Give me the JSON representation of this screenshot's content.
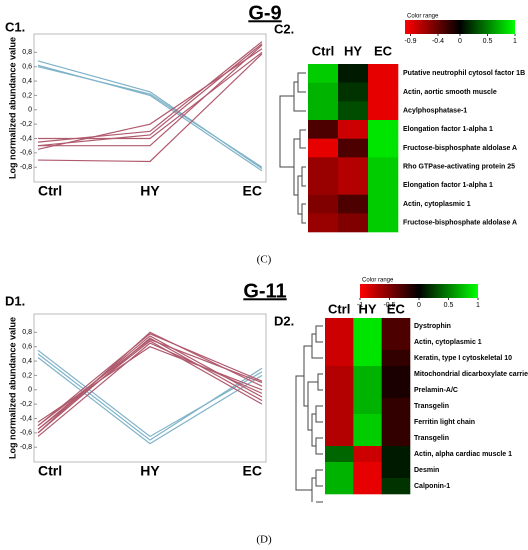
{
  "figures": [
    {
      "title": "G-9",
      "caption": "(C)"
    },
    {
      "title": "G-11",
      "caption": "(D)"
    }
  ],
  "chart_data": [
    {
      "type": "line",
      "panel_label": "C1.",
      "y_label": "Log normalized abundance value",
      "categories": [
        "Ctrl",
        "HY",
        "EC"
      ],
      "ylim": [
        -0.95,
        1.0
      ],
      "yticks": [
        {
          "value": 0.8,
          "label": "0,8"
        },
        {
          "value": 0.6,
          "label": "0,6"
        },
        {
          "value": 0.4,
          "label": "0,4"
        },
        {
          "value": 0.2,
          "label": "0,2"
        },
        0,
        {
          "value": -0.2,
          "label": "-0,2"
        },
        {
          "value": -0.4,
          "label": "-0,4"
        },
        {
          "value": -0.6,
          "label": "-0,6"
        },
        {
          "value": -0.8,
          "label": "-0,8"
        }
      ],
      "series": [
        {
          "color": "#7fb3c8",
          "values": [
            0.68,
            0.25,
            -0.82
          ]
        },
        {
          "color": "#7fb3c8",
          "values": [
            0.62,
            0.2,
            -0.85
          ]
        },
        {
          "color": "#7fb3c8",
          "values": [
            0.6,
            0.22,
            -0.8
          ]
        },
        {
          "color": "#b05a6e",
          "values": [
            -0.45,
            -0.3,
            0.95
          ]
        },
        {
          "color": "#b05a6e",
          "values": [
            -0.5,
            -0.5,
            0.9
          ]
        },
        {
          "color": "#b05a6e",
          "values": [
            -0.55,
            -0.2,
            0.85
          ]
        },
        {
          "color": "#b05a6e",
          "values": [
            -0.4,
            -0.4,
            0.8
          ]
        },
        {
          "color": "#b05a6e",
          "values": [
            -0.7,
            -0.72,
            0.78
          ]
        },
        {
          "color": "#b05a6e",
          "values": [
            -0.5,
            -0.35,
            0.92
          ]
        }
      ]
    },
    {
      "type": "heatmap",
      "panel_label": "C2.",
      "columns": [
        "Ctrl",
        "HY",
        "EC"
      ],
      "rows": [
        "Putative neutrophil cytosol factor 1B",
        "Actin, aortic smooth muscle",
        "Acylphosphatase-1",
        "Elongation factor 1-alpha 1",
        "Fructose-bisphosphate aldolase A",
        "Rho GTPase-activating protein 25",
        "Elongation factor 1-alpha 1",
        "Actin, cytoplasmic 1",
        "Fructose-bisphosphate aldolase A"
      ],
      "values": [
        [
          0.8,
          0.1,
          -0.9
        ],
        [
          0.7,
          0.2,
          -0.9
        ],
        [
          0.7,
          0.3,
          -0.9
        ],
        [
          -0.3,
          -0.8,
          0.9
        ],
        [
          -0.9,
          -0.3,
          0.9
        ],
        [
          -0.6,
          -0.7,
          0.8
        ],
        [
          -0.6,
          -0.7,
          0.8
        ],
        [
          -0.5,
          -0.3,
          0.8
        ],
        [
          -0.6,
          -0.5,
          0.8
        ]
      ],
      "colorbar": {
        "title": "Color range",
        "clim": [
          -1,
          1
        ],
        "colors": [
          "#ff0000",
          "#000000",
          "#00ff00"
        ],
        "ticks": [
          -0.9,
          -0.4,
          0,
          0.5,
          1
        ]
      }
    },
    {
      "type": "line",
      "panel_label": "D1.",
      "y_label": "Log normalized abundance value",
      "categories": [
        "Ctrl",
        "HY",
        "EC"
      ],
      "ylim": [
        -0.95,
        1.0
      ],
      "yticks": [
        {
          "value": 0.8,
          "label": "0,8"
        },
        {
          "value": 0.6,
          "label": "0,6"
        },
        {
          "value": 0.4,
          "label": "0,4"
        },
        {
          "value": 0.2,
          "label": "0,2"
        },
        0,
        {
          "value": -0.2,
          "label": "-0,2"
        },
        {
          "value": -0.4,
          "label": "-0,4"
        },
        {
          "value": -0.6,
          "label": "-0,6"
        },
        {
          "value": -0.8,
          "label": "-0,8"
        }
      ],
      "series": [
        {
          "color": "#7fb3c8",
          "values": [
            0.5,
            -0.7,
            0.3
          ]
        },
        {
          "color": "#7fb3c8",
          "values": [
            0.45,
            -0.75,
            0.2
          ]
        },
        {
          "color": "#7fb3c8",
          "values": [
            0.55,
            -0.65,
            0.25
          ]
        },
        {
          "color": "#b05a6e",
          "values": [
            -0.6,
            0.8,
            0.05
          ]
        },
        {
          "color": "#b05a6e",
          "values": [
            -0.55,
            0.75,
            -0.1
          ]
        },
        {
          "color": "#b05a6e",
          "values": [
            -0.5,
            0.7,
            0.1
          ]
        },
        {
          "color": "#b05a6e",
          "values": [
            -0.65,
            0.65,
            -0.05
          ]
        },
        {
          "color": "#b05a6e",
          "values": [
            -0.45,
            0.6,
            0.0
          ]
        },
        {
          "color": "#b05a6e",
          "values": [
            -0.6,
            0.72,
            -0.15
          ]
        },
        {
          "color": "#b05a6e",
          "values": [
            -0.5,
            0.78,
            0.12
          ]
        },
        {
          "color": "#b05a6e",
          "values": [
            -0.55,
            0.68,
            -0.2
          ]
        }
      ]
    },
    {
      "type": "heatmap",
      "panel_label": "D2.",
      "columns": [
        "Ctrl",
        "HY",
        "EC"
      ],
      "rows": [
        "Dystrophin",
        "Actin, cytoplasmic 1",
        "Keratin, type I cytoskeletal 10",
        "Mitochondrial dicarboxylate carrier",
        "Prelamin-A/C",
        "Transgelin",
        "Ferritin light chain",
        "Transgelin",
        "Actin, alpha cardiac muscle 1",
        "Desmin",
        "Calponin-1"
      ],
      "values": [
        [
          -0.8,
          0.9,
          -0.3
        ],
        [
          -0.8,
          0.9,
          -0.3
        ],
        [
          -0.8,
          0.9,
          -0.2
        ],
        [
          -0.7,
          0.7,
          -0.1
        ],
        [
          -0.7,
          0.7,
          -0.1
        ],
        [
          -0.7,
          0.7,
          -0.2
        ],
        [
          -0.7,
          0.8,
          -0.2
        ],
        [
          -0.7,
          0.8,
          -0.2
        ],
        [
          0.4,
          -0.8,
          0.1
        ],
        [
          0.7,
          -0.9,
          0.1
        ],
        [
          0.7,
          -0.9,
          0.2
        ]
      ],
      "colorbar": {
        "title": "Color range",
        "clim": [
          -1,
          1
        ],
        "colors": [
          "#ff0000",
          "#000000",
          "#00ff00"
        ],
        "ticks": [
          -1,
          -0.5,
          0,
          0.5,
          1
        ]
      }
    }
  ]
}
